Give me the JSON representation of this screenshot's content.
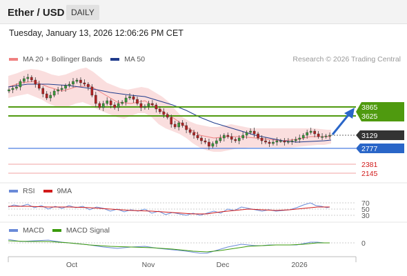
{
  "header": {
    "title": "Ether / USD",
    "period": "DAILY"
  },
  "timestamp": "Tuesday, January 13, 2026 12:06:26 PM CET",
  "main_legend": [
    {
      "label": "MA 20 + Bollinger Bands",
      "color": "#f08080"
    },
    {
      "label": "MA 50",
      "color": "#1f3b8c"
    }
  ],
  "credit": "Research © 2026 Trading Central",
  "rsi_legend": [
    {
      "label": "RSI",
      "color": "#6a8ad8"
    },
    {
      "label": "9MA",
      "color": "#d11a1a"
    }
  ],
  "macd_legend": [
    {
      "label": "MACD",
      "color": "#6a8ad8"
    },
    {
      "label": "MACD Signal",
      "color": "#3a9a0a"
    }
  ],
  "chart_data": {
    "type": "candlestick",
    "x_ticks": [
      "Oct",
      "Nov",
      "Dec",
      "2026"
    ],
    "price_levels": [
      {
        "value": 3865,
        "label": "3865",
        "kind": "resistance",
        "color": "#4f9a0f"
      },
      {
        "value": 3625,
        "label": "3625",
        "kind": "resistance",
        "color": "#4f9a0f"
      },
      {
        "value": 3129,
        "label": "3129",
        "kind": "last",
        "color": "#333333"
      },
      {
        "value": 2777,
        "label": "2777",
        "kind": "support",
        "color": "#4a7de0"
      },
      {
        "value": 2381,
        "label": "2381",
        "kind": "support",
        "color": "#e08888"
      },
      {
        "value": 2145,
        "label": "2145",
        "kind": "support",
        "color": "#e08888"
      }
    ],
    "rsi": {
      "levels": [
        70,
        50,
        30
      ],
      "labels": [
        "70",
        "50",
        "30"
      ]
    },
    "macd": {
      "levels": [
        0
      ],
      "labels": [
        "0"
      ]
    },
    "forecast_direction": "up"
  }
}
